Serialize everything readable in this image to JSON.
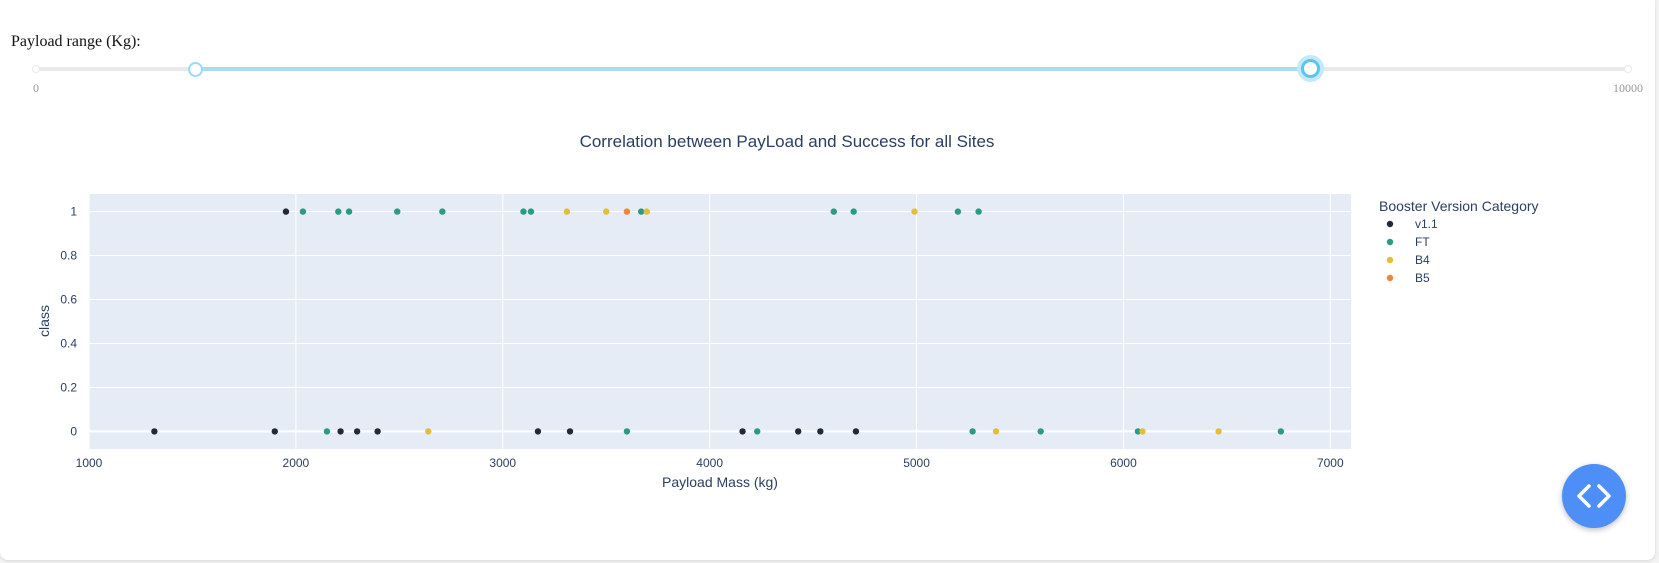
{
  "slider": {
    "label": "Payload range (Kg):",
    "min": 0,
    "max": 10000,
    "min_label": "0",
    "max_label": "10000",
    "selected": [
      1000,
      8000
    ]
  },
  "colors": {
    "accent_track": "#abdbee",
    "handle_border": "#96dbfa",
    "plot_bg": "#e5ecf6",
    "fab": "#4e8ef7"
  },
  "fab": {
    "icon": "code-brackets-icon"
  },
  "chart_data": {
    "type": "scatter",
    "title": "Correlation between PayLoad and Success for all Sites",
    "xlabel": "Payload Mass (kg)",
    "ylabel": "class",
    "xlim": [
      1000,
      7100
    ],
    "ylim": [
      -0.08,
      1.08
    ],
    "xticks": [
      1000,
      2000,
      3000,
      4000,
      5000,
      6000,
      7000
    ],
    "yticks": [
      0,
      0.2,
      0.4,
      0.6,
      0.8,
      1
    ],
    "grid": true,
    "legend_title": "Booster Version Category",
    "legend_position": "right",
    "series": [
      {
        "name": "v1.1",
        "color": "#222a3a",
        "points": [
          [
            1952,
            1
          ],
          [
            1316,
            0
          ],
          [
            1898,
            0
          ],
          [
            2216,
            0
          ],
          [
            2296,
            0
          ],
          [
            2395,
            0
          ],
          [
            3170,
            0
          ],
          [
            3325,
            0
          ],
          [
            4159,
            0
          ],
          [
            4428,
            0
          ],
          [
            4535,
            0
          ],
          [
            4707,
            0
          ]
        ]
      },
      {
        "name": "FT",
        "color": "#2a9a82",
        "points": [
          [
            2034,
            1
          ],
          [
            2205,
            1
          ],
          [
            2257,
            1
          ],
          [
            2490,
            1
          ],
          [
            2708,
            1
          ],
          [
            3100,
            1
          ],
          [
            3136,
            1
          ],
          [
            3669,
            1
          ],
          [
            4600,
            1
          ],
          [
            4696,
            1
          ],
          [
            5200,
            1
          ],
          [
            5300,
            1
          ],
          [
            2150,
            0
          ],
          [
            3600,
            0
          ],
          [
            4230,
            0
          ],
          [
            5271,
            0
          ],
          [
            5600,
            0
          ],
          [
            6070,
            0
          ],
          [
            6761,
            0
          ]
        ]
      },
      {
        "name": "B4",
        "color": "#e3be3c",
        "points": [
          [
            3310,
            1
          ],
          [
            3500,
            1
          ],
          [
            3696,
            1
          ],
          [
            4990,
            1
          ],
          [
            2640,
            0
          ],
          [
            5384,
            0
          ],
          [
            6092,
            0
          ],
          [
            6460,
            0
          ]
        ]
      },
      {
        "name": "B5",
        "color": "#e9883a",
        "points": [
          [
            3600,
            1
          ]
        ]
      }
    ]
  }
}
